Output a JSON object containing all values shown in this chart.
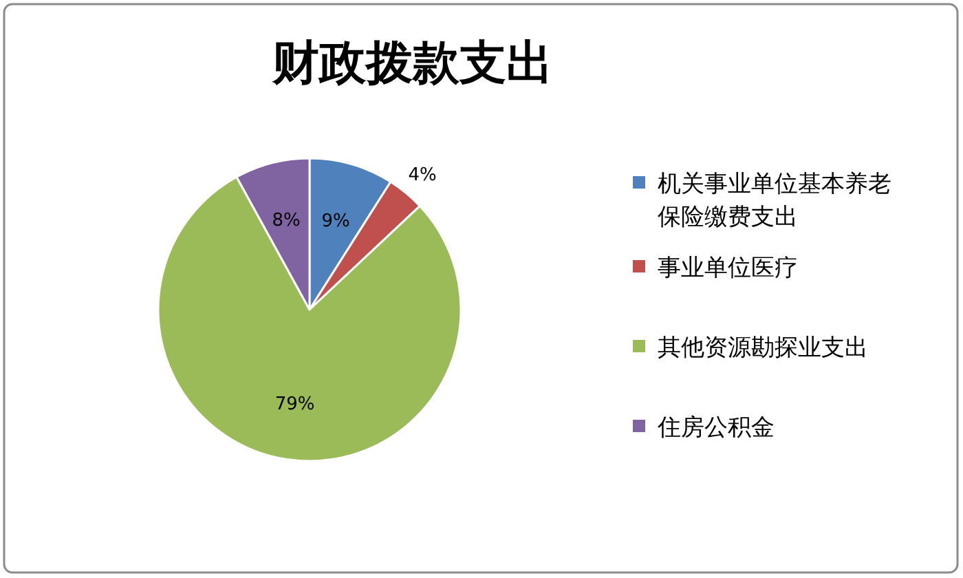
{
  "chart_data": {
    "type": "pie",
    "title": "财政拨款支出",
    "categories": [
      "机关事业单位基本养老保险缴费支出",
      "事业单位医疗",
      "其他资源勘探业支出",
      "住房公积金"
    ],
    "values": [
      9,
      4,
      79,
      8
    ],
    "colors": [
      "#4f81bd",
      "#c0504d",
      "#9bbb59",
      "#8064a2"
    ],
    "value_labels": [
      "9%",
      "4%",
      "79%",
      "8%"
    ],
    "legend": "right"
  }
}
